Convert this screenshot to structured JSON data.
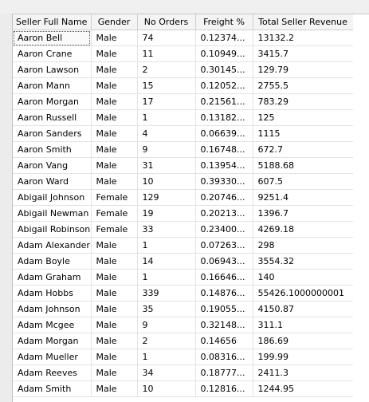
{
  "grid": {
    "columns": [
      "Seller Full Name",
      "Gender",
      "No Orders",
      "Freight %",
      "Total Seller Revenue"
    ],
    "rows": [
      [
        "Aaron Bell",
        "Male",
        "74",
        "0.12374...",
        "13132.2"
      ],
      [
        "Aaron Crane",
        "Male",
        "11",
        "0.10949...",
        "3415.7"
      ],
      [
        "Aaron Lawson",
        "Male",
        "2",
        "0.30145...",
        "129.79"
      ],
      [
        "Aaron Mann",
        "Male",
        "15",
        "0.12052...",
        "2755.5"
      ],
      [
        "Aaron Morgan",
        "Male",
        "17",
        "0.21561...",
        "783.29"
      ],
      [
        "Aaron Russell",
        "Male",
        "1",
        "0.13182...",
        "125"
      ],
      [
        "Aaron Sanders",
        "Male",
        "4",
        "0.06639...",
        "1115"
      ],
      [
        "Aaron Smith",
        "Male",
        "9",
        "0.16748...",
        "672.7"
      ],
      [
        "Aaron Vang",
        "Male",
        "31",
        "0.13954...",
        "5188.68"
      ],
      [
        "Aaron Ward",
        "Male",
        "10",
        "0.39330...",
        "607.5"
      ],
      [
        "Abigail Johnson",
        "Female",
        "129",
        "0.20746...",
        "9251.4"
      ],
      [
        "Abigail Newman",
        "Female",
        "19",
        "0.20213...",
        "1396.7"
      ],
      [
        "Abigail Robinson",
        "Female",
        "33",
        "0.23400...",
        "4269.18"
      ],
      [
        "Adam Alexander",
        "Male",
        "1",
        "0.07263...",
        "298"
      ],
      [
        "Adam Boyle",
        "Male",
        "14",
        "0.06943...",
        "3554.32"
      ],
      [
        "Adam Graham",
        "Male",
        "1",
        "0.16646...",
        "140"
      ],
      [
        "Adam Hobbs",
        "Male",
        "339",
        "0.14876...",
        "55426.1000000001"
      ],
      [
        "Adam Johnson",
        "Male",
        "35",
        "0.19055...",
        "4150.87"
      ],
      [
        "Adam Mcgee",
        "Male",
        "9",
        "0.32148...",
        "311.1"
      ],
      [
        "Adam Morgan",
        "Male",
        "2",
        "0.14656",
        "186.69"
      ],
      [
        "Adam Mueller",
        "Male",
        "1",
        "0.08316...",
        "199.99"
      ],
      [
        "Adam Reeves",
        "Male",
        "34",
        "0.18777...",
        "2411.3"
      ],
      [
        "Adam Smith",
        "Male",
        "10",
        "0.12816...",
        "1244.95"
      ]
    ]
  }
}
